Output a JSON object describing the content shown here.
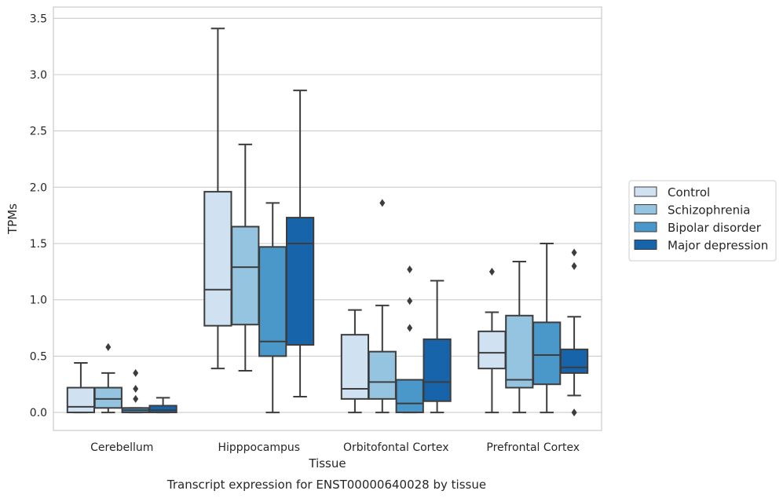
{
  "chart_data": {
    "type": "boxplot",
    "caption": "Transcript expression for ENST00000640028 by tissue",
    "xlabel": "Tissue",
    "ylabel": "TPMs",
    "ylim": [
      -0.16,
      3.6
    ],
    "yticks": [
      0.0,
      0.5,
      1.0,
      1.5,
      2.0,
      2.5,
      3.0,
      3.5
    ],
    "ytick_labels": [
      "0.0",
      "0.5",
      "1.0",
      "1.5",
      "2.0",
      "2.5",
      "3.0",
      "3.5"
    ],
    "grid": "horizontal",
    "legend_position": "right",
    "categories": [
      "Cerebellum",
      "Hipppocampus",
      "Orbitofontal Cortex",
      "Prefrontal Cortex"
    ],
    "series": [
      {
        "name": "Control",
        "color": "#d0e1f2",
        "boxes": [
          {
            "whislo": 0.0,
            "q1": 0.0,
            "med": 0.05,
            "q3": 0.22,
            "whishi": 0.44,
            "fliers": []
          },
          {
            "whislo": 0.39,
            "q1": 0.77,
            "med": 1.09,
            "q3": 1.96,
            "whishi": 3.41,
            "fliers": []
          },
          {
            "whislo": 0.0,
            "q1": 0.12,
            "med": 0.21,
            "q3": 0.69,
            "whishi": 0.91,
            "fliers": []
          },
          {
            "whislo": 0.0,
            "q1": 0.39,
            "med": 0.53,
            "q3": 0.72,
            "whishi": 0.89,
            "fliers": [
              1.25
            ]
          }
        ]
      },
      {
        "name": "Schizophrenia",
        "color": "#94c4df",
        "boxes": [
          {
            "whislo": 0.0,
            "q1": 0.04,
            "med": 0.12,
            "q3": 0.22,
            "whishi": 0.35,
            "fliers": [
              0.58
            ]
          },
          {
            "whislo": 0.37,
            "q1": 0.78,
            "med": 1.29,
            "q3": 1.65,
            "whishi": 2.38,
            "fliers": []
          },
          {
            "whislo": 0.0,
            "q1": 0.12,
            "med": 0.27,
            "q3": 0.54,
            "whishi": 0.95,
            "fliers": [
              1.86
            ]
          },
          {
            "whislo": 0.0,
            "q1": 0.22,
            "med": 0.29,
            "q3": 0.86,
            "whishi": 1.34,
            "fliers": []
          }
        ]
      },
      {
        "name": "Bipolar disorder",
        "color": "#4a98c9",
        "boxes": [
          {
            "whislo": 0.0,
            "q1": 0.0,
            "med": 0.02,
            "q3": 0.04,
            "whishi": 0.04,
            "fliers": [
              0.12,
              0.21,
              0.35
            ]
          },
          {
            "whislo": 0.0,
            "q1": 0.5,
            "med": 0.63,
            "q3": 1.47,
            "whishi": 1.86,
            "fliers": []
          },
          {
            "whislo": 0.0,
            "q1": 0.0,
            "med": 0.08,
            "q3": 0.29,
            "whishi": 0.29,
            "fliers": [
              0.75,
              0.99,
              1.27
            ]
          },
          {
            "whislo": 0.0,
            "q1": 0.25,
            "med": 0.51,
            "q3": 0.8,
            "whishi": 1.5,
            "fliers": []
          }
        ]
      },
      {
        "name": "Major depression",
        "color": "#1764ab",
        "boxes": [
          {
            "whislo": 0.0,
            "q1": 0.0,
            "med": 0.02,
            "q3": 0.06,
            "whishi": 0.13,
            "fliers": []
          },
          {
            "whislo": 0.14,
            "q1": 0.6,
            "med": 1.5,
            "q3": 1.73,
            "whishi": 2.86,
            "fliers": []
          },
          {
            "whislo": 0.0,
            "q1": 0.1,
            "med": 0.27,
            "q3": 0.65,
            "whishi": 1.17,
            "fliers": []
          },
          {
            "whislo": 0.15,
            "q1": 0.35,
            "med": 0.4,
            "q3": 0.56,
            "whishi": 0.85,
            "fliers": [
              0.0,
              1.3,
              1.42
            ]
          }
        ]
      }
    ]
  }
}
